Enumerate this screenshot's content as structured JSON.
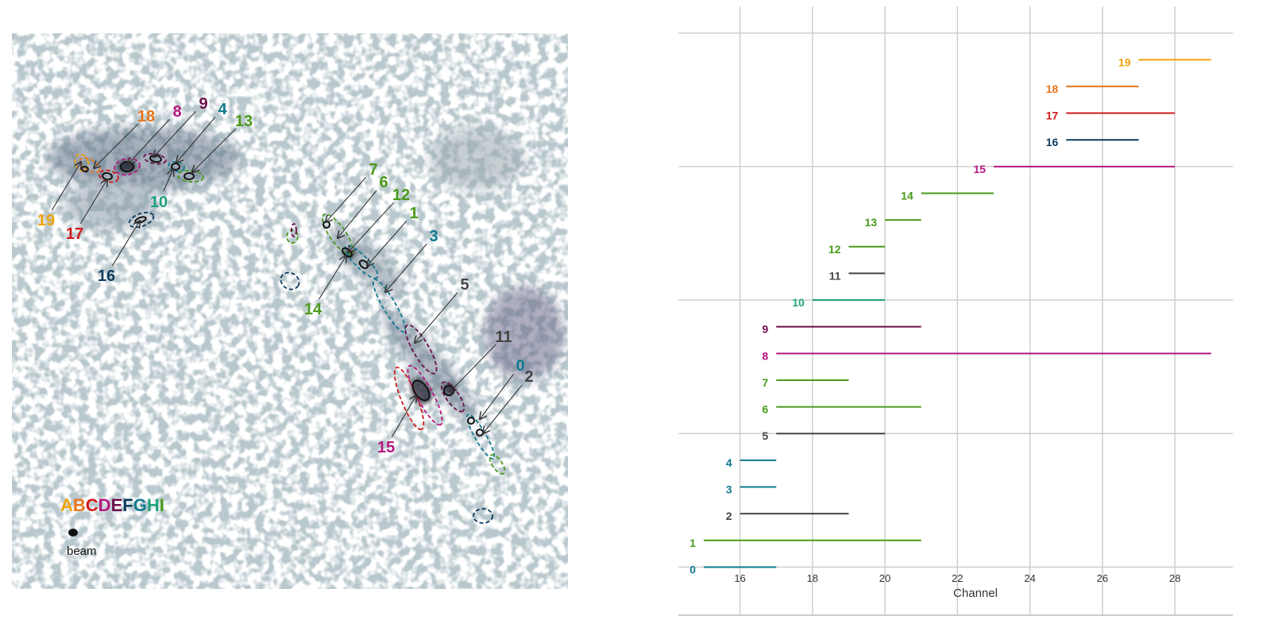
{
  "colors": {
    "A": "#f0a30a",
    "B": "#e8741a",
    "C": "#d11a1a",
    "D": "#b5177f",
    "E": "#6b0f4a",
    "F": "#0b3a5c",
    "G": "#0f7a8f",
    "H": "#1fa37a",
    "I": "#4a9a1a",
    "dark": "#444444",
    "grid": "#cccccc",
    "axis": "#bbbbbb",
    "text": "#333333"
  },
  "map": {
    "legend_letters": [
      {
        "letter": "A",
        "color": "#f0a30a"
      },
      {
        "letter": "B",
        "color": "#e8741a"
      },
      {
        "letter": "C",
        "color": "#d11a1a"
      },
      {
        "letter": "D",
        "color": "#b5177f"
      },
      {
        "letter": "E",
        "color": "#6b0f4a"
      },
      {
        "letter": "F",
        "color": "#0b3a5c"
      },
      {
        "letter": "G",
        "color": "#0f7a8f"
      },
      {
        "letter": "H",
        "color": "#1fa37a"
      },
      {
        "letter": "I",
        "color": "#4a9a1a"
      }
    ],
    "beam_label": "beam",
    "component_labels": [
      {
        "id": "0",
        "color": "#0f7a8f"
      },
      {
        "id": "1",
        "color": "#4a9a1a"
      },
      {
        "id": "2",
        "color": "#444444"
      },
      {
        "id": "3",
        "color": "#0f7a8f"
      },
      {
        "id": "4",
        "color": "#0f7a8f"
      },
      {
        "id": "5",
        "color": "#444444"
      },
      {
        "id": "6",
        "color": "#4a9a1a"
      },
      {
        "id": "7",
        "color": "#4a9a1a"
      },
      {
        "id": "8",
        "color": "#b5177f"
      },
      {
        "id": "9",
        "color": "#6b0f4a"
      },
      {
        "id": "10",
        "color": "#1fa37a"
      },
      {
        "id": "11",
        "color": "#444444"
      },
      {
        "id": "12",
        "color": "#4a9a1a"
      },
      {
        "id": "13",
        "color": "#4a9a1a"
      },
      {
        "id": "14",
        "color": "#4a9a1a"
      },
      {
        "id": "15",
        "color": "#b5177f"
      },
      {
        "id": "16",
        "color": "#0b3a5c"
      },
      {
        "id": "17",
        "color": "#d11a1a"
      },
      {
        "id": "18",
        "color": "#e8741a"
      },
      {
        "id": "19",
        "color": "#f0a30a"
      }
    ]
  },
  "chart_data": {
    "type": "range-bar",
    "xlabel": "Channel",
    "ylabel": "",
    "xlim": [
      14.3,
      29.6
    ],
    "ylim": [
      -1.8,
      21.0
    ],
    "xticks": [
      16,
      18,
      20,
      22,
      24,
      26,
      28
    ],
    "yticks": [
      0,
      5,
      10,
      15,
      20
    ],
    "grid": true,
    "series": [
      {
        "name": "0",
        "start": 15,
        "end": 17,
        "color": "#0f7a8f"
      },
      {
        "name": "1",
        "start": 15,
        "end": 21,
        "color": "#4a9a1a"
      },
      {
        "name": "2",
        "start": 16,
        "end": 19,
        "color": "#444444"
      },
      {
        "name": "3",
        "start": 16,
        "end": 17,
        "color": "#0f7a8f"
      },
      {
        "name": "4",
        "start": 16,
        "end": 17,
        "color": "#0f7a8f"
      },
      {
        "name": "5",
        "start": 17,
        "end": 20,
        "color": "#444444"
      },
      {
        "name": "6",
        "start": 17,
        "end": 21,
        "color": "#4a9a1a"
      },
      {
        "name": "7",
        "start": 17,
        "end": 19,
        "color": "#4a9a1a"
      },
      {
        "name": "8",
        "start": 17,
        "end": 29,
        "color": "#b5177f"
      },
      {
        "name": "9",
        "start": 17,
        "end": 21,
        "color": "#6b0f4a"
      },
      {
        "name": "10",
        "start": 18,
        "end": 20,
        "color": "#1fa37a"
      },
      {
        "name": "11",
        "start": 19,
        "end": 20,
        "color": "#444444"
      },
      {
        "name": "12",
        "start": 19,
        "end": 20,
        "color": "#4a9a1a"
      },
      {
        "name": "13",
        "start": 20,
        "end": 21,
        "color": "#4a9a1a"
      },
      {
        "name": "14",
        "start": 21,
        "end": 23,
        "color": "#4a9a1a"
      },
      {
        "name": "15",
        "start": 23,
        "end": 28,
        "color": "#b5177f"
      },
      {
        "name": "16",
        "start": 25,
        "end": 27,
        "color": "#0b3a5c"
      },
      {
        "name": "17",
        "start": 25,
        "end": 28,
        "color": "#d11a1a"
      },
      {
        "name": "18",
        "start": 25,
        "end": 27,
        "color": "#e8741a"
      },
      {
        "name": "19",
        "start": 27,
        "end": 29,
        "color": "#f0a30a"
      }
    ]
  }
}
